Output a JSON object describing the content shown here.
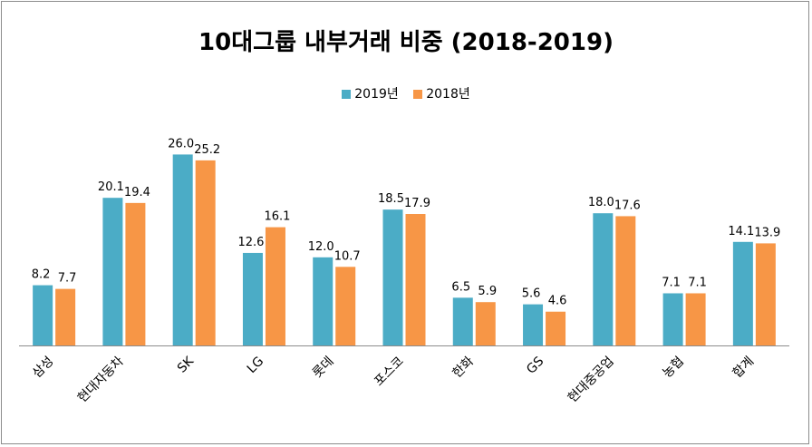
{
  "chart_data": {
    "type": "bar",
    "title": "10대그룹 내부거래 비중 (2018-2019)",
    "xlabel": "",
    "ylabel": "",
    "ylim": [
      0,
      30
    ],
    "grid": false,
    "legend_position": "top",
    "categories": [
      "삼성",
      "현대자동차",
      "SK",
      "LG",
      "롯데",
      "포스코",
      "한화",
      "GS",
      "현대중공업",
      "농협",
      "합계"
    ],
    "series": [
      {
        "name": "2019년",
        "color": "#4bacc6",
        "values": [
          8.2,
          20.1,
          26.0,
          12.6,
          12.0,
          18.5,
          6.5,
          5.6,
          18.0,
          7.1,
          14.1
        ],
        "labels": [
          "8.2",
          "20.1",
          "26.0",
          "12.6",
          "12.0",
          "18.5",
          "6.5",
          "5.6",
          "18.0",
          "7.1",
          "14.1"
        ]
      },
      {
        "name": "2018년",
        "color": "#f79646",
        "values": [
          7.7,
          19.4,
          25.2,
          16.1,
          10.7,
          17.9,
          5.9,
          4.6,
          17.6,
          7.1,
          13.9
        ],
        "labels": [
          "7.7",
          "19.4",
          "25.2",
          "16.1",
          "10.7",
          "17.9",
          "5.9",
          "4.6",
          "17.6",
          "7.1",
          "13.9"
        ]
      }
    ]
  }
}
